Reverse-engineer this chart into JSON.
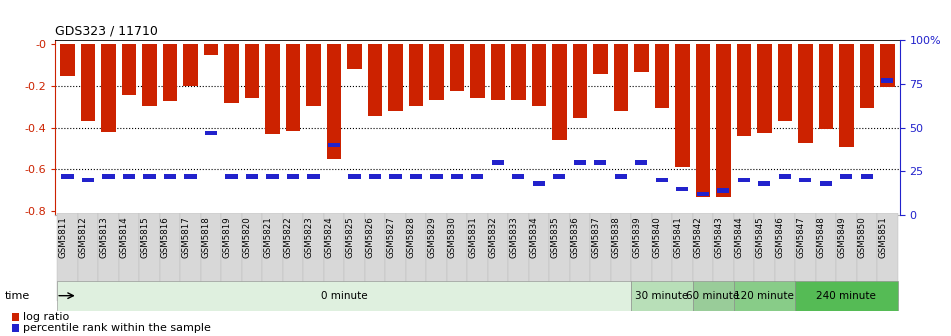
{
  "title": "GDS323 / 11710",
  "samples": [
    "GSM5811",
    "GSM5812",
    "GSM5813",
    "GSM5814",
    "GSM5815",
    "GSM5816",
    "GSM5817",
    "GSM5818",
    "GSM5819",
    "GSM5820",
    "GSM5821",
    "GSM5822",
    "GSM5823",
    "GSM5824",
    "GSM5825",
    "GSM5826",
    "GSM5827",
    "GSM5828",
    "GSM5829",
    "GSM5830",
    "GSM5831",
    "GSM5832",
    "GSM5833",
    "GSM5834",
    "GSM5835",
    "GSM5836",
    "GSM5837",
    "GSM5838",
    "GSM5839",
    "GSM5840",
    "GSM5841",
    "GSM5842",
    "GSM5843",
    "GSM5844",
    "GSM5845",
    "GSM5846",
    "GSM5847",
    "GSM5848",
    "GSM5849",
    "GSM5850",
    "GSM5851"
  ],
  "log_ratio": [
    -0.15,
    -0.37,
    -0.42,
    -0.245,
    -0.295,
    -0.27,
    -0.2,
    -0.05,
    -0.28,
    -0.255,
    -0.43,
    -0.415,
    -0.295,
    -0.55,
    -0.12,
    -0.345,
    -0.32,
    -0.295,
    -0.265,
    -0.225,
    -0.255,
    -0.265,
    -0.265,
    -0.295,
    -0.46,
    -0.355,
    -0.14,
    -0.32,
    -0.13,
    -0.305,
    -0.59,
    -0.735,
    -0.735,
    -0.44,
    -0.425,
    -0.37,
    -0.475,
    -0.405,
    -0.495,
    -0.305,
    -0.205
  ],
  "percentile_pct": [
    22,
    20,
    22,
    22,
    22,
    22,
    22,
    47,
    22,
    22,
    22,
    22,
    22,
    40,
    22,
    22,
    22,
    22,
    22,
    22,
    22,
    30,
    22,
    18,
    22,
    30,
    30,
    22,
    30,
    20,
    15,
    12,
    14,
    20,
    18,
    22,
    20,
    18,
    22,
    22,
    77
  ],
  "bar_color": "#cc2200",
  "percentile_color": "#2222cc",
  "ylim_left": [
    -0.82,
    0.02
  ],
  "ylim_right": [
    0,
    100
  ],
  "left_yticks": [
    0,
    -0.2,
    -0.4,
    -0.6,
    -0.8
  ],
  "right_yticks": [
    0,
    25,
    50,
    75,
    100
  ],
  "right_yticklabels": [
    "0",
    "25",
    "50",
    "75",
    "100%"
  ],
  "time_groups": [
    {
      "label": "0 minute",
      "start": 0,
      "end": 28,
      "color": "#dff0df"
    },
    {
      "label": "30 minute",
      "start": 28,
      "end": 31,
      "color": "#b8dfb8"
    },
    {
      "label": "60 minute",
      "start": 31,
      "end": 33,
      "color": "#99cc99"
    },
    {
      "label": "120 minute",
      "start": 33,
      "end": 36,
      "color": "#88cc88"
    },
    {
      "label": "240 minute",
      "start": 36,
      "end": 41,
      "color": "#55bb55"
    }
  ]
}
